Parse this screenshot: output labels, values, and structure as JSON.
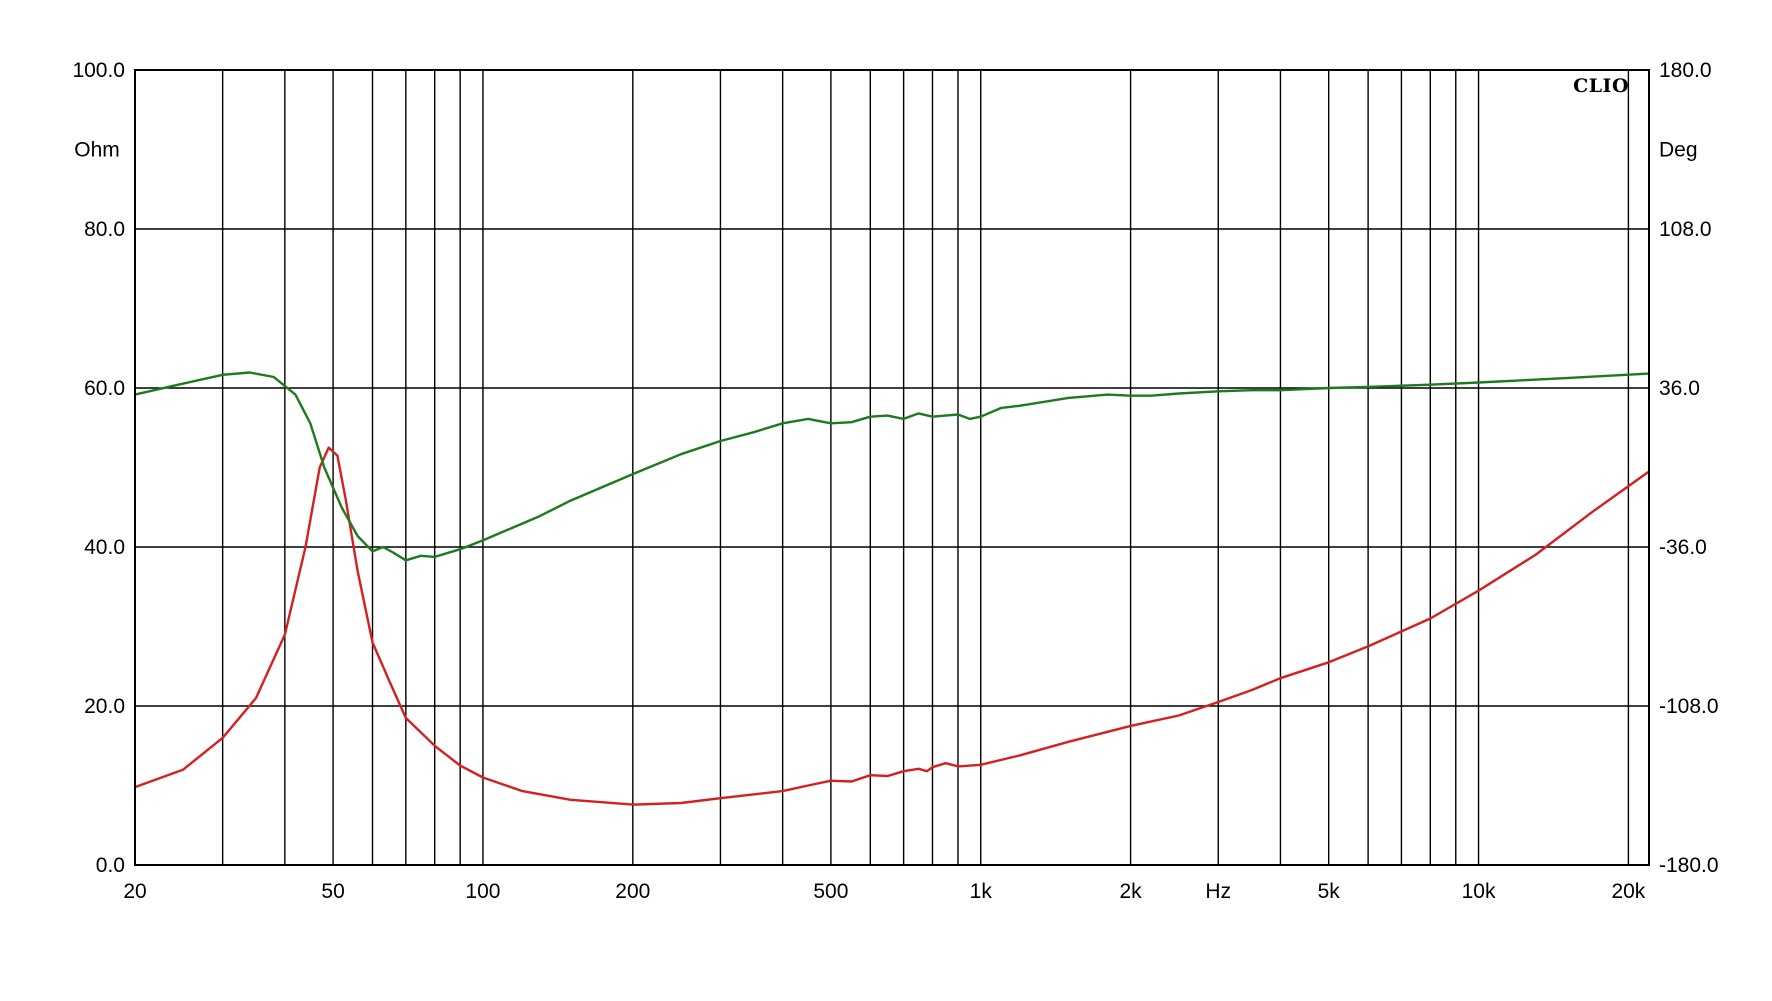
{
  "chart_data": {
    "type": "line",
    "brand": "CLIO",
    "x_unit": "Hz",
    "x_scale": "log",
    "xlim": [
      20,
      22000
    ],
    "x_ticks": [
      {
        "v": 20,
        "label": "20"
      },
      {
        "v": 50,
        "label": "50"
      },
      {
        "v": 100,
        "label": "100"
      },
      {
        "v": 200,
        "label": "200"
      },
      {
        "v": 500,
        "label": "500"
      },
      {
        "v": 1000,
        "label": "1k"
      },
      {
        "v": 2000,
        "label": "2k"
      },
      {
        "v": 5000,
        "label": "5k"
      },
      {
        "v": 10000,
        "label": "10k"
      },
      {
        "v": 20000,
        "label": "20k"
      }
    ],
    "x_gridlines": [
      30,
      40,
      50,
      60,
      70,
      80,
      90,
      100,
      200,
      300,
      400,
      500,
      600,
      700,
      800,
      900,
      1000,
      2000,
      3000,
      4000,
      5000,
      6000,
      7000,
      8000,
      9000,
      10000,
      20000
    ],
    "y_left": {
      "unit": "Ohm",
      "ylim": [
        0,
        100
      ],
      "ticks": [
        {
          "v": 0,
          "label": "0.0"
        },
        {
          "v": 20,
          "label": "20.0"
        },
        {
          "v": 40,
          "label": "40.0"
        },
        {
          "v": 60,
          "label": "60.0"
        },
        {
          "v": 80,
          "label": "80.0"
        },
        {
          "v": 100,
          "label": "100.0"
        }
      ]
    },
    "y_right": {
      "unit": "Deg",
      "ylim": [
        -180,
        180
      ],
      "ticks": [
        {
          "v": -180,
          "label": "-180.0"
        },
        {
          "v": -108,
          "label": "-108.0"
        },
        {
          "v": -36,
          "label": "-36.0"
        },
        {
          "v": 36,
          "label": "36.0"
        },
        {
          "v": 108,
          "label": "108.0"
        },
        {
          "v": 180,
          "label": "180.0"
        }
      ]
    },
    "grid": true,
    "series": [
      {
        "color": "#d42020",
        "axis": "left",
        "points": [
          [
            20,
            9.8
          ],
          [
            25,
            12
          ],
          [
            30,
            16
          ],
          [
            35,
            21
          ],
          [
            40,
            29
          ],
          [
            44,
            40
          ],
          [
            47,
            50
          ],
          [
            49,
            52.5
          ],
          [
            51,
            51.5
          ],
          [
            53,
            46
          ],
          [
            56,
            37
          ],
          [
            60,
            28
          ],
          [
            65,
            23
          ],
          [
            70,
            18.5
          ],
          [
            80,
            15
          ],
          [
            90,
            12.5
          ],
          [
            100,
            11
          ],
          [
            120,
            9.3
          ],
          [
            150,
            8.2
          ],
          [
            200,
            7.6
          ],
          [
            250,
            7.8
          ],
          [
            300,
            8.4
          ],
          [
            400,
            9.3
          ],
          [
            450,
            10
          ],
          [
            500,
            10.6
          ],
          [
            550,
            10.5
          ],
          [
            600,
            11.3
          ],
          [
            650,
            11.2
          ],
          [
            700,
            11.8
          ],
          [
            750,
            12.1
          ],
          [
            780,
            11.8
          ],
          [
            800,
            12.3
          ],
          [
            850,
            12.8
          ],
          [
            900,
            12.4
          ],
          [
            1000,
            12.6
          ],
          [
            1200,
            13.8
          ],
          [
            1500,
            15.5
          ],
          [
            2000,
            17.5
          ],
          [
            2500,
            18.8
          ],
          [
            3000,
            20.5
          ],
          [
            3500,
            22
          ],
          [
            4000,
            23.5
          ],
          [
            5000,
            25.5
          ],
          [
            6000,
            27.5
          ],
          [
            8000,
            31
          ],
          [
            10000,
            34.5
          ],
          [
            13000,
            39
          ],
          [
            17000,
            44.5
          ],
          [
            22000,
            49.5
          ]
        ]
      },
      {
        "color": "#1e7a1e",
        "axis": "right",
        "points": [
          [
            20,
            33
          ],
          [
            25,
            38
          ],
          [
            30,
            42
          ],
          [
            34,
            43
          ],
          [
            38,
            41
          ],
          [
            42,
            33
          ],
          [
            45,
            20
          ],
          [
            48,
            0
          ],
          [
            52,
            -18
          ],
          [
            56,
            -31
          ],
          [
            60,
            -38
          ],
          [
            63,
            -36
          ],
          [
            66,
            -38.5
          ],
          [
            70,
            -42
          ],
          [
            75,
            -40
          ],
          [
            80,
            -40.5
          ],
          [
            90,
            -37
          ],
          [
            100,
            -33
          ],
          [
            130,
            -22
          ],
          [
            150,
            -15
          ],
          [
            200,
            -3
          ],
          [
            250,
            6
          ],
          [
            300,
            12
          ],
          [
            350,
            16
          ],
          [
            400,
            20
          ],
          [
            450,
            22
          ],
          [
            500,
            20
          ],
          [
            550,
            20.5
          ],
          [
            600,
            23
          ],
          [
            650,
            23.5
          ],
          [
            700,
            22
          ],
          [
            750,
            24.5
          ],
          [
            800,
            23
          ],
          [
            850,
            23.5
          ],
          [
            900,
            24
          ],
          [
            950,
            22
          ],
          [
            1000,
            23
          ],
          [
            1100,
            27
          ],
          [
            1200,
            28
          ],
          [
            1500,
            31.5
          ],
          [
            1800,
            33
          ],
          [
            2000,
            32.5
          ],
          [
            2200,
            32.5
          ],
          [
            2500,
            33.5
          ],
          [
            3000,
            34.5
          ],
          [
            3500,
            35
          ],
          [
            4000,
            35
          ],
          [
            5000,
            36
          ],
          [
            6000,
            36.5
          ],
          [
            8000,
            37.5
          ],
          [
            10000,
            38.5
          ],
          [
            15000,
            40.5
          ],
          [
            22000,
            42.5
          ]
        ]
      }
    ]
  }
}
